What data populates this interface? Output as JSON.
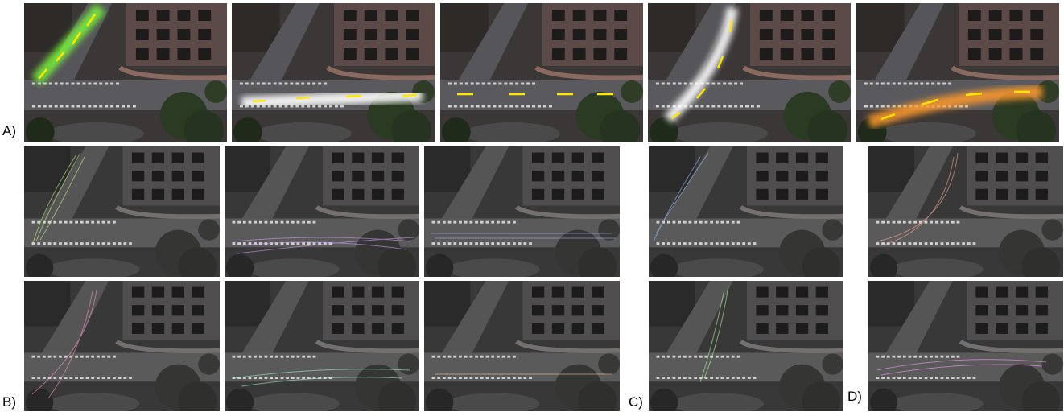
{
  "panels": {
    "a": "A)",
    "b": "B)",
    "c": "C)",
    "d": "D)"
  }
}
